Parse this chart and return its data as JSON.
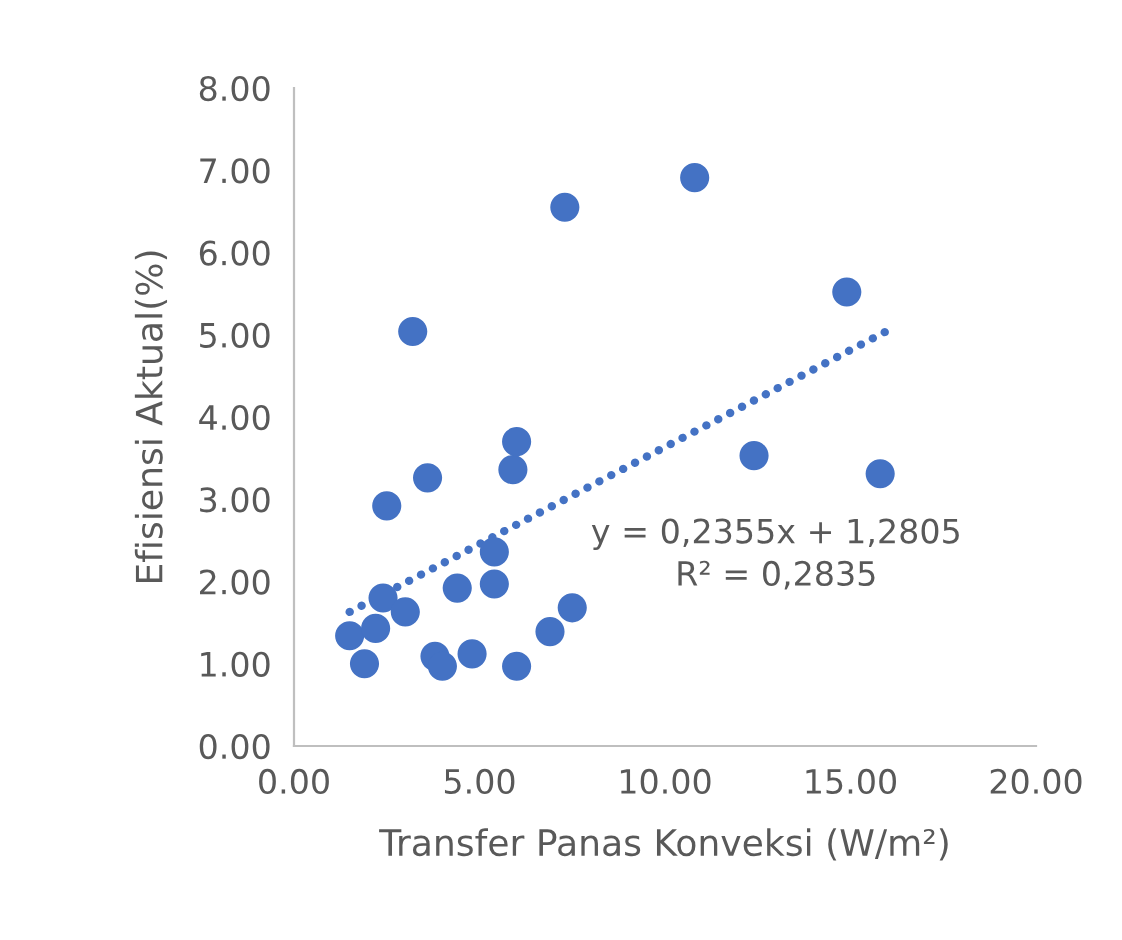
{
  "chart_data": {
    "type": "scatter",
    "xlabel": "Transfer Panas Konveksi (W/m²)",
    "ylabel": "Efisiensi Aktual(%)",
    "xlim": [
      0,
      20
    ],
    "ylim": [
      0,
      8
    ],
    "xticks": [
      {
        "value": 0,
        "label": "0.00"
      },
      {
        "value": 5,
        "label": "5.00"
      },
      {
        "value": 10,
        "label": "10.00"
      },
      {
        "value": 15,
        "label": "15.00"
      },
      {
        "value": 20,
        "label": "20.00"
      }
    ],
    "yticks": [
      {
        "value": 0,
        "label": "0.00"
      },
      {
        "value": 1,
        "label": "1.00"
      },
      {
        "value": 2,
        "label": "2.00"
      },
      {
        "value": 3,
        "label": "3.00"
      },
      {
        "value": 4,
        "label": "4.00"
      },
      {
        "value": 5,
        "label": "5.00"
      },
      {
        "value": 6,
        "label": "6.00"
      },
      {
        "value": 7,
        "label": "7.00"
      },
      {
        "value": 8,
        "label": "8.00"
      }
    ],
    "grid": false,
    "series": [
      {
        "marker": "circle",
        "color": "#4472c4",
        "x": [
          1.5,
          1.9,
          2.2,
          2.4,
          2.5,
          3.0,
          3.2,
          3.6,
          3.8,
          4.0,
          4.4,
          4.8,
          5.4,
          5.4,
          5.9,
          6.0,
          6.0,
          6.9,
          7.5,
          7.3,
          10.8,
          12.4,
          14.9,
          15.8
        ],
        "values": [
          1.34,
          1.0,
          1.43,
          1.8,
          2.92,
          1.63,
          5.04,
          3.26,
          1.09,
          0.97,
          1.92,
          1.12,
          1.97,
          2.36,
          3.36,
          3.7,
          0.97,
          1.39,
          1.68,
          6.55,
          6.91,
          3.53,
          5.52,
          3.31
        ]
      },
      {
        "type": "line",
        "marker": "none",
        "line_style": "dotted",
        "color": "#4472c4",
        "x": [
          1.5,
          16.0
        ],
        "values": [
          1.63,
          5.05
        ]
      }
    ],
    "annotations": [
      "y = 0,2355x + 1,2805\nR² = 0,2835"
    ]
  }
}
